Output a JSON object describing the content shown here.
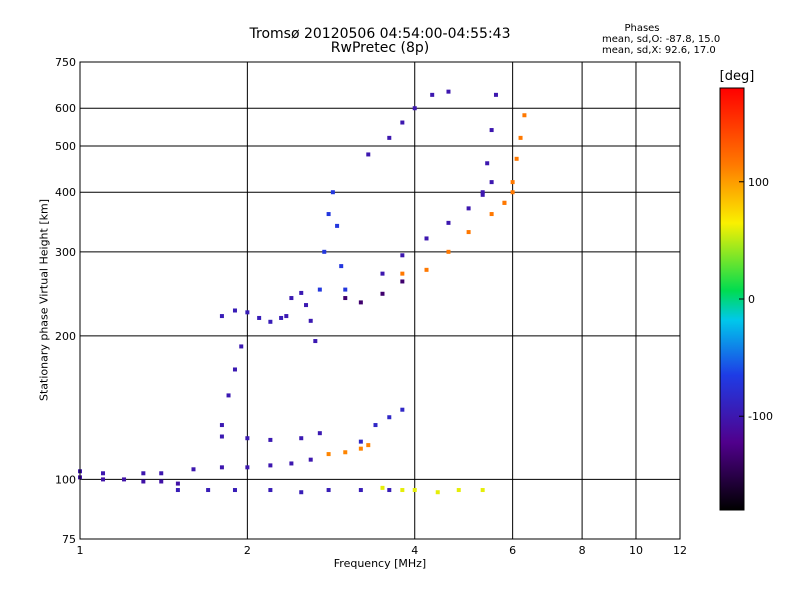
{
  "chart_data": {
    "type": "scatter",
    "title": "Tromsø 20120506 04:54:00-04:55:43",
    "subtitle": "RwPretec (8p)",
    "xlabel": "Frequency [MHz]",
    "ylabel": "Stationary phase Virtual Height [km]",
    "x_scale": "log",
    "y_scale": "log",
    "xlim": [
      1,
      12
    ],
    "ylim": [
      75,
      750
    ],
    "x_ticks": [
      1,
      2,
      4,
      6,
      8,
      10,
      12
    ],
    "y_ticks": [
      75,
      100,
      200,
      300,
      400,
      500,
      600,
      750
    ],
    "grid": true,
    "phase_summary": {
      "title": "Phases",
      "line_o": "mean, sd,O: -87.8, 15.0",
      "line_x": "mean, sd,X:  92.6, 17.0"
    },
    "colorbar": {
      "title": "[deg]",
      "range": [
        -180,
        180
      ],
      "ticks": [
        100,
        0,
        -100
      ],
      "colormap": "rainbow (black-purple-blue-cyan-green-yellow-orange-red)"
    },
    "series": [
      {
        "traces": [
          {
            "x": [
              1.0,
              1.1,
              1.2,
              1.3,
              1.4,
              1.5
            ],
            "y": [
              101,
              100,
              100,
              99,
              99,
              98
            ],
            "phase": -105
          },
          {
            "x": [
              1.5,
              1.7,
              1.9,
              2.2,
              2.5,
              2.8,
              3.2,
              3.6
            ],
            "y": [
              95,
              95,
              95,
              95,
              94,
              95,
              95,
              95
            ],
            "phase": -95
          },
          {
            "x": [
              1.0,
              1.1,
              1.3,
              1.4,
              1.6,
              1.8,
              2.0,
              2.2,
              2.4,
              2.6
            ],
            "y": [
              104,
              103,
              103,
              103,
              105,
              106,
              106,
              107,
              108,
              110
            ],
            "phase": -100
          },
          {
            "x": [
              1.8,
              2.0,
              2.2,
              2.5,
              2.7
            ],
            "y": [
              123,
              122,
              121,
              122,
              125
            ],
            "phase": -98
          },
          {
            "x": [
              2.8,
              3.0,
              3.2,
              3.3
            ],
            "y": [
              113,
              114,
              116,
              118
            ],
            "phase": 110
          },
          {
            "x": [
              3.5,
              3.8,
              4.0,
              4.4,
              4.8,
              5.3
            ],
            "y": [
              96,
              95,
              95,
              94,
              95,
              95
            ],
            "phase": 60
          },
          {
            "x": [
              1.8,
              1.85,
              1.9,
              1.95
            ],
            "y": [
              130,
              150,
              170,
              190
            ],
            "phase": -98
          },
          {
            "x": [
              1.8,
              1.9,
              2.0,
              2.1,
              2.2,
              2.3
            ],
            "y": [
              220,
              226,
              224,
              218,
              214,
              218
            ],
            "phase": -95
          },
          {
            "x": [
              2.35,
              2.4,
              2.5,
              2.55,
              2.6,
              2.65
            ],
            "y": [
              220,
              240,
              246,
              232,
              215,
              195
            ],
            "phase": -98
          },
          {
            "x": [
              2.7,
              2.75,
              2.8,
              2.85,
              2.9,
              2.95,
              3.0
            ],
            "y": [
              250,
              300,
              360,
              400,
              340,
              280,
              250
            ],
            "phase": -70
          },
          {
            "x": [
              3.0,
              3.2,
              3.5,
              3.8
            ],
            "y": [
              240,
              235,
              245,
              260
            ],
            "phase": -135
          },
          {
            "x": [
              3.5,
              3.8,
              4.2,
              4.6,
              5.0,
              5.3,
              5.5
            ],
            "y": [
              270,
              295,
              320,
              345,
              370,
              395,
              420
            ],
            "phase": -100
          },
          {
            "x": [
              5.3,
              5.4,
              5.5,
              5.6
            ],
            "y": [
              400,
              460,
              540,
              640
            ],
            "phase": -100
          },
          {
            "x": [
              3.3,
              3.6,
              3.8,
              4.0,
              4.3,
              4.6
            ],
            "y": [
              480,
              520,
              560,
              600,
              640,
              650
            ],
            "phase": -100
          },
          {
            "x": [
              3.8,
              4.2,
              4.6,
              5.0,
              5.5,
              5.8,
              6.0
            ],
            "y": [
              270,
              275,
              300,
              330,
              360,
              380,
              400
            ],
            "phase": 115
          },
          {
            "x": [
              5.8,
              6.0,
              6.1,
              6.2,
              6.3
            ],
            "y": [
              380,
              420,
              470,
              520,
              580
            ],
            "phase": 115
          },
          {
            "x": [
              3.2,
              3.4,
              3.6,
              3.8
            ],
            "y": [
              120,
              130,
              135,
              140
            ],
            "phase": -85
          }
        ]
      }
    ]
  }
}
